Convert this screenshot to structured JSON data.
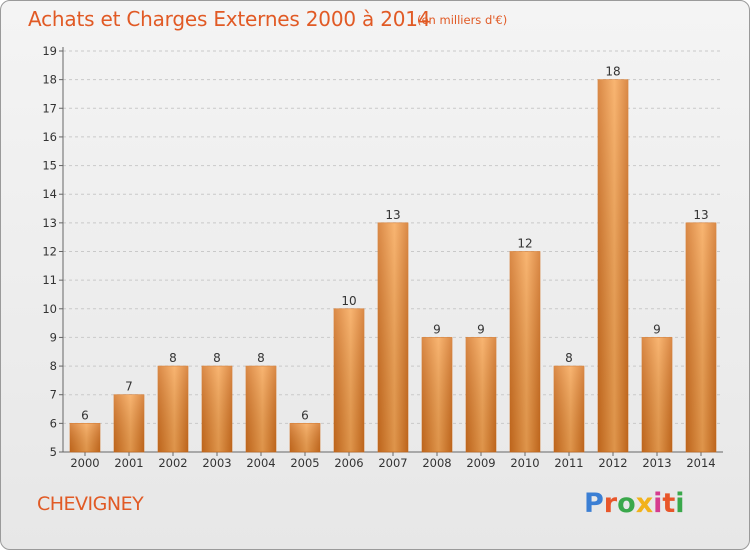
{
  "header": {
    "title": "Achats et Charges Externes 2000 à 2014",
    "unit": "(en milliers d'€)"
  },
  "footer": {
    "commune": "CHEVIGNEY",
    "logo_letters": [
      "P",
      "r",
      "o",
      "x",
      "i",
      "t",
      "i"
    ],
    "logo_colors": [
      "#3b7fd4",
      "#e8562a",
      "#3aa84b",
      "#f2b21b",
      "#d63b8f",
      "#e8562a",
      "#3aa84b"
    ]
  },
  "chart_data": {
    "type": "bar",
    "title": "Achats et Charges Externes 2000 à 2014",
    "subtitle": "(en milliers d'€)",
    "categories": [
      "2000",
      "2001",
      "2002",
      "2003",
      "2004",
      "2005",
      "2006",
      "2007",
      "2008",
      "2009",
      "2010",
      "2011",
      "2012",
      "2013",
      "2014"
    ],
    "values": [
      6,
      7,
      8,
      8,
      8,
      6,
      10,
      13,
      9,
      9,
      12,
      8,
      18,
      9,
      13
    ],
    "xlabel": "",
    "ylabel": "",
    "ylim": [
      5,
      19
    ],
    "yticks": [
      5,
      6,
      7,
      8,
      9,
      10,
      11,
      12,
      13,
      14,
      15,
      16,
      17,
      18,
      19
    ],
    "grid": "horizontal",
    "legend": "none",
    "bar_color_light": "#f7a553",
    "bar_color_dark": "#d2701f",
    "label_color": "#333333"
  }
}
